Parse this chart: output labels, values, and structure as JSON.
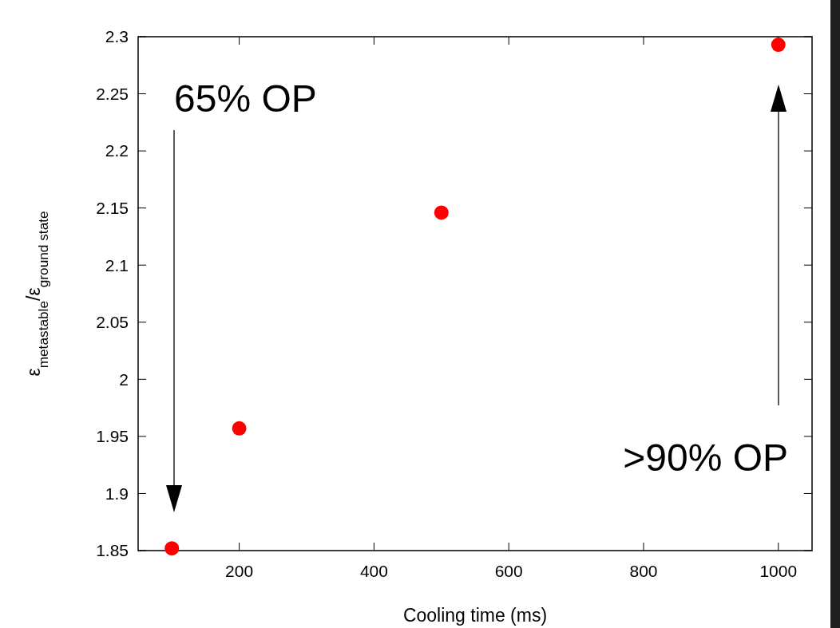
{
  "chart_data": {
    "type": "scatter",
    "xlabel": "Cooling time (ms)",
    "ylabel": "ε$_{metastable}$/ε$_{ground state}$",
    "x": [
      100,
      200,
      500,
      1000
    ],
    "series": [
      {
        "color": "#ff0000",
        "values": [
          1.852,
          1.957,
          2.146,
          2.293
        ]
      }
    ],
    "marker": "circle",
    "xlim": [
      50,
      1050
    ],
    "xticks": [
      200,
      400,
      600,
      800,
      1000
    ],
    "ylim": [
      1.85,
      2.3
    ],
    "yticks": [
      1.85,
      1.9,
      1.95,
      2,
      2.05,
      2.1,
      2.15,
      2.2,
      2.25,
      2.3
    ],
    "grid": false,
    "annotations": [
      "65% OP",
      ">90% OP"
    ]
  }
}
